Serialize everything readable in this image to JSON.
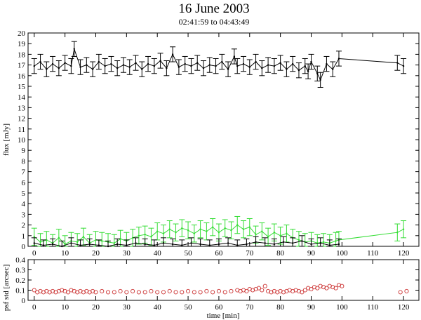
{
  "chart_data": [
    {
      "type": "line",
      "title": "16 June 2003",
      "subtitle": "02:41:59 to 04:43:49",
      "xlabel": "",
      "ylabel": "flux [mJy]",
      "xlim": [
        -2,
        125
      ],
      "ylim": [
        0,
        20
      ],
      "y_ticks": [
        0,
        1,
        2,
        3,
        4,
        5,
        6,
        7,
        8,
        9,
        10,
        11,
        12,
        13,
        14,
        15,
        16,
        17,
        18,
        19,
        20
      ],
      "x_ticks": [
        0,
        10,
        20,
        30,
        40,
        50,
        60,
        70,
        80,
        90,
        100,
        110,
        120
      ],
      "grid": false,
      "series": [
        {
          "color": "#000000",
          "error": 0.7,
          "x": [
            0,
            2,
            4,
            6,
            8,
            10,
            12,
            13,
            15,
            17,
            19,
            21,
            23,
            25,
            27,
            29,
            31,
            33,
            35,
            37,
            39,
            41,
            43,
            45,
            47,
            49,
            51,
            53,
            55,
            57,
            59,
            61,
            63,
            65,
            66,
            68,
            70,
            72,
            74,
            76,
            78,
            80,
            82,
            84,
            86,
            88,
            89,
            90,
            92,
            93,
            95,
            97,
            99,
            118,
            120
          ],
          "y": [
            16.9,
            17.3,
            16.6,
            17.1,
            16.7,
            17.2,
            16.9,
            18.5,
            16.8,
            17.0,
            16.6,
            17.3,
            16.9,
            17.1,
            16.7,
            17.0,
            16.8,
            17.2,
            16.6,
            17.1,
            16.9,
            17.4,
            16.7,
            18.0,
            16.8,
            17.1,
            16.9,
            17.2,
            16.7,
            17.0,
            16.9,
            17.3,
            16.6,
            17.8,
            16.9,
            17.1,
            16.8,
            17.3,
            16.7,
            17.0,
            16.9,
            17.2,
            16.6,
            17.1,
            16.5,
            16.9,
            16.4,
            17.3,
            16.2,
            15.6,
            17.1,
            16.6,
            17.6,
            17.2,
            16.9
          ]
        },
        {
          "color": "#33dd33",
          "error": 0.8,
          "x": [
            0,
            2,
            4,
            6,
            8,
            10,
            12,
            14,
            16,
            18,
            20,
            22,
            24,
            26,
            28,
            30,
            32,
            34,
            36,
            38,
            40,
            42,
            44,
            46,
            48,
            50,
            52,
            54,
            56,
            58,
            60,
            62,
            64,
            66,
            68,
            70,
            72,
            74,
            76,
            78,
            80,
            82,
            84,
            86,
            88,
            90,
            92,
            94,
            96,
            98,
            99,
            118,
            120
          ],
          "y": [
            0.9,
            0.4,
            0.6,
            0.3,
            0.8,
            0.2,
            0.5,
            0.4,
            0.9,
            0.3,
            0.6,
            0.5,
            0.4,
            0.3,
            0.7,
            0.5,
            0.8,
            1.0,
            1.1,
            0.9,
            1.4,
            1.2,
            1.6,
            1.3,
            1.7,
            1.5,
            1.2,
            1.6,
            1.4,
            1.8,
            1.3,
            1.7,
            1.5,
            2.0,
            1.6,
            1.8,
            1.1,
            1.4,
            0.9,
            1.3,
            1.0,
            1.2,
            0.8,
            0.6,
            0.4,
            0.5,
            0.3,
            0.4,
            0.3,
            0.5,
            0.6,
            1.3,
            1.6
          ]
        },
        {
          "color": "#000000",
          "error": 0.5,
          "x": [
            0,
            3,
            6,
            9,
            12,
            15,
            18,
            21,
            24,
            27,
            30,
            33,
            36,
            39,
            42,
            45,
            48,
            51,
            54,
            57,
            60,
            63,
            66,
            69,
            72,
            75,
            78,
            81,
            84,
            87,
            90,
            93,
            96,
            99
          ],
          "y": [
            0.3,
            0.1,
            0.2,
            0.0,
            0.3,
            0.1,
            0.2,
            0.1,
            0.0,
            0.2,
            0.1,
            0.3,
            0.2,
            0.1,
            0.3,
            0.2,
            0.1,
            0.3,
            0.2,
            0.1,
            0.2,
            0.3,
            0.1,
            0.2,
            0.4,
            0.3,
            0.2,
            0.4,
            0.3,
            0.5,
            0.2,
            0.3,
            0.1,
            0.2
          ]
        }
      ]
    },
    {
      "type": "scatter",
      "xlabel": "time [min]",
      "ylabel": "psf std [arcsec]",
      "xlim": [
        -2,
        125
      ],
      "ylim": [
        0,
        0.4
      ],
      "y_ticks": [
        0,
        0.1,
        0.2,
        0.3,
        0.4
      ],
      "y_tick_labels": [
        "0",
        "0.1",
        "0.2",
        "0.3",
        "0.4"
      ],
      "x_ticks": [
        0,
        10,
        20,
        30,
        40,
        50,
        60,
        70,
        80,
        90,
        100,
        110,
        120
      ],
      "grid": false,
      "series": [
        {
          "color": "#cc3333",
          "x": [
            0,
            1,
            2,
            3,
            4,
            5,
            6,
            7,
            8,
            9,
            10,
            11,
            12,
            13,
            14,
            15,
            16,
            17,
            18,
            19,
            20,
            22,
            24,
            26,
            28,
            30,
            32,
            34,
            36,
            38,
            40,
            42,
            44,
            46,
            48,
            50,
            52,
            54,
            56,
            58,
            60,
            62,
            64,
            66,
            67,
            68,
            69,
            70,
            71,
            72,
            73,
            74,
            75,
            76,
            77,
            78,
            79,
            80,
            81,
            82,
            83,
            84,
            85,
            86,
            87,
            88,
            89,
            90,
            91,
            92,
            93,
            94,
            95,
            96,
            97,
            98,
            99,
            100,
            119,
            121
          ],
          "y": [
            0.1,
            0.08,
            0.09,
            0.08,
            0.09,
            0.08,
            0.09,
            0.08,
            0.09,
            0.1,
            0.09,
            0.08,
            0.1,
            0.09,
            0.08,
            0.09,
            0.08,
            0.09,
            0.08,
            0.09,
            0.08,
            0.09,
            0.08,
            0.08,
            0.09,
            0.08,
            0.09,
            0.08,
            0.08,
            0.09,
            0.08,
            0.08,
            0.09,
            0.08,
            0.08,
            0.09,
            0.08,
            0.08,
            0.09,
            0.08,
            0.09,
            0.08,
            0.09,
            0.1,
            0.09,
            0.1,
            0.09,
            0.11,
            0.1,
            0.11,
            0.12,
            0.1,
            0.14,
            0.09,
            0.08,
            0.09,
            0.08,
            0.09,
            0.08,
            0.09,
            0.1,
            0.09,
            0.1,
            0.09,
            0.08,
            0.1,
            0.12,
            0.11,
            0.13,
            0.12,
            0.14,
            0.13,
            0.12,
            0.14,
            0.13,
            0.12,
            0.15,
            0.14,
            0.08,
            0.09
          ]
        }
      ]
    }
  ]
}
